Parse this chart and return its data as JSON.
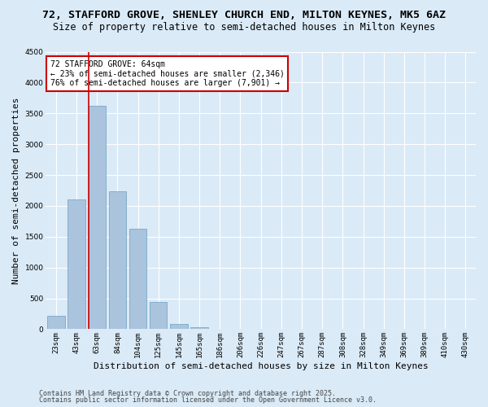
{
  "title_line1": "72, STAFFORD GROVE, SHENLEY CHURCH END, MILTON KEYNES, MK5 6AZ",
  "title_line2": "Size of property relative to semi-detached houses in Milton Keynes",
  "xlabel": "Distribution of semi-detached houses by size in Milton Keynes",
  "ylabel": "Number of semi-detached properties",
  "categories": [
    "23sqm",
    "43sqm",
    "63sqm",
    "84sqm",
    "104sqm",
    "125sqm",
    "145sqm",
    "165sqm",
    "186sqm",
    "206sqm",
    "226sqm",
    "247sqm",
    "267sqm",
    "287sqm",
    "308sqm",
    "328sqm",
    "349sqm",
    "369sqm",
    "389sqm",
    "410sqm",
    "430sqm"
  ],
  "values": [
    215,
    2100,
    3620,
    2240,
    1630,
    440,
    90,
    30,
    12,
    5,
    3,
    2,
    1,
    0,
    0,
    0,
    0,
    0,
    0,
    0,
    0
  ],
  "bar_color": "#aac4de",
  "bar_edge_color": "#6a9fc0",
  "vline_color": "#cc0000",
  "annotation_title": "72 STAFFORD GROVE: 64sqm",
  "annotation_line1": "← 23% of semi-detached houses are smaller (2,346)",
  "annotation_line2": "76% of semi-detached houses are larger (7,901) →",
  "annotation_box_color": "#cc0000",
  "ylim": [
    0,
    4500
  ],
  "yticks": [
    0,
    500,
    1000,
    1500,
    2000,
    2500,
    3000,
    3500,
    4000,
    4500
  ],
  "footnote1": "Contains HM Land Registry data © Crown copyright and database right 2025.",
  "footnote2": "Contains public sector information licensed under the Open Government Licence v3.0.",
  "background_color": "#daeaf7",
  "plot_background_color": "#daeaf7",
  "grid_color": "#ffffff",
  "title_fontsize": 9.5,
  "subtitle_fontsize": 8.5,
  "axis_label_fontsize": 8,
  "tick_fontsize": 6.5,
  "annotation_fontsize": 7,
  "footnote_fontsize": 6
}
